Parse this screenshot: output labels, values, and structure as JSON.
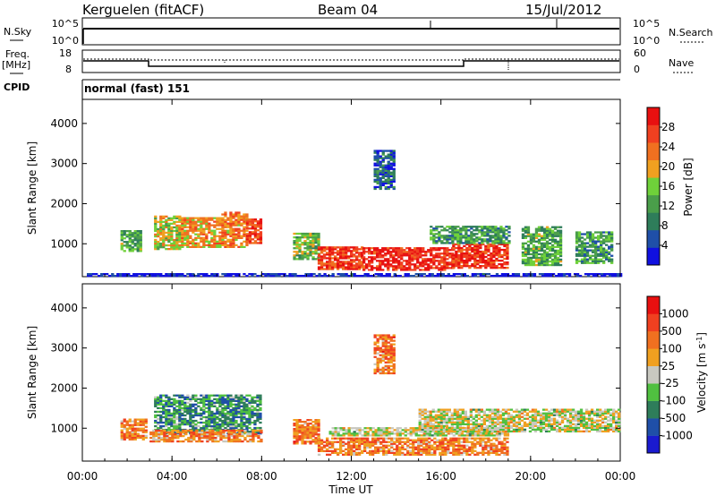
{
  "header": {
    "station": "Kerguelen (fitACF)",
    "beam": "Beam 04",
    "date": "15/Jul/2012"
  },
  "nsky_panel": {
    "left_label_1": "N.Sky",
    "left_ticks": [
      "10^5",
      "10^0"
    ],
    "right_ticks": [
      "10^5",
      "10^0"
    ],
    "right_label": "N.Search"
  },
  "freq_panel": {
    "left_label_1": "Freq.",
    "left_label_2": "[MHz]",
    "left_ticks": [
      "18",
      "8"
    ],
    "right_ticks": [
      "60",
      "0"
    ],
    "right_label": "Nave"
  },
  "cpid": {
    "label": "CPID",
    "program": "normal (fast) 151"
  },
  "x_axis": {
    "ticks": [
      "00:00",
      "04:00",
      "08:00",
      "12:00",
      "16:00",
      "20:00",
      "00:00"
    ],
    "title": "Time UT"
  },
  "colors": {
    "power_scale": [
      "#1010e0",
      "#1f4fa8",
      "#2e7d5a",
      "#4a9e4a",
      "#6fd13a",
      "#f0a020",
      "#f07020",
      "#f04020",
      "#e81010"
    ],
    "velocity_scale": [
      "#1a1ad0",
      "#1f4fa8",
      "#2e7d5a",
      "#50c040",
      "#c8c8c0",
      "#f0a020",
      "#f07020",
      "#f04020",
      "#e81010"
    ]
  },
  "chart_data": [
    {
      "type": "heatmap",
      "title": "",
      "xlabel": "",
      "ylabel": "Slant Range [km]",
      "y_ticks": [
        "1000",
        "2000",
        "3000",
        "4000"
      ],
      "ylim_km": [
        180,
        4600
      ],
      "xlim_hours": [
        0,
        24
      ],
      "colorbar": {
        "title": "Power [dB]",
        "ticks": [
          "4",
          "8",
          "12",
          "16",
          "20",
          "24",
          "28"
        ],
        "range": [
          0,
          32
        ]
      },
      "regions": [
        {
          "t0": 0.2,
          "t1": 24,
          "r0": 180,
          "r1": 250,
          "level": 0.05
        },
        {
          "t0": 1.7,
          "t1": 2.6,
          "r0": 800,
          "r1": 1300,
          "level": 0.4
        },
        {
          "t0": 3.2,
          "t1": 4.4,
          "r0": 850,
          "r1": 1700,
          "level": 0.55
        },
        {
          "t0": 4.4,
          "t1": 6.2,
          "r0": 900,
          "r1": 1650,
          "level": 0.65
        },
        {
          "t0": 6.2,
          "t1": 7.3,
          "r0": 900,
          "r1": 1800,
          "level": 0.7
        },
        {
          "t0": 7.3,
          "t1": 8.0,
          "r0": 1000,
          "r1": 1600,
          "level": 0.85
        },
        {
          "t0": 9.4,
          "t1": 10.5,
          "r0": 600,
          "r1": 1250,
          "level": 0.45
        },
        {
          "t0": 10.5,
          "t1": 12.5,
          "r0": 350,
          "r1": 900,
          "level": 0.85
        },
        {
          "t0": 12.5,
          "t1": 16.5,
          "r0": 330,
          "r1": 900,
          "level": 0.92
        },
        {
          "t0": 16.5,
          "t1": 19.0,
          "r0": 380,
          "r1": 1000,
          "level": 0.88
        },
        {
          "t0": 15.5,
          "t1": 19.0,
          "r0": 1000,
          "r1": 1450,
          "level": 0.35
        },
        {
          "t0": 19.6,
          "t1": 21.4,
          "r0": 450,
          "r1": 1400,
          "level": 0.4
        },
        {
          "t0": 22.0,
          "t1": 23.6,
          "r0": 500,
          "r1": 1300,
          "level": 0.35
        },
        {
          "t0": 13.0,
          "t1": 13.9,
          "r0": 2350,
          "r1": 3300,
          "level": 0.2
        }
      ]
    },
    {
      "type": "heatmap",
      "title": "",
      "xlabel": "Time UT",
      "ylabel": "Slant Range [km]",
      "y_ticks": [
        "1000",
        "2000",
        "3000",
        "4000"
      ],
      "ylim_km": [
        180,
        4600
      ],
      "xlim_hours": [
        0,
        24
      ],
      "colorbar": {
        "title": "Velocity [m s^-1]",
        "ticks": [
          "1000",
          "500",
          "100",
          "25",
          "-25",
          "-100",
          "-500",
          "-1000"
        ],
        "range": [
          -1000,
          1000
        ]
      },
      "regions": [
        {
          "t0": 1.7,
          "t1": 2.8,
          "r0": 700,
          "r1": 1200,
          "level": 0.7
        },
        {
          "t0": 3.2,
          "t1": 8.0,
          "r0": 850,
          "r1": 1800,
          "level": 0.3
        },
        {
          "t0": 3.0,
          "t1": 8.0,
          "r0": 650,
          "r1": 950,
          "level": 0.68
        },
        {
          "t0": 9.4,
          "t1": 10.5,
          "r0": 600,
          "r1": 1200,
          "level": 0.72
        },
        {
          "t0": 10.5,
          "t1": 19.0,
          "r0": 320,
          "r1": 750,
          "level": 0.7
        },
        {
          "t0": 11.0,
          "t1": 19.0,
          "r0": 800,
          "r1": 1000,
          "level": 0.5
        },
        {
          "t0": 15.0,
          "t1": 24.0,
          "r0": 900,
          "r1": 1450,
          "level": 0.5
        },
        {
          "t0": 13.0,
          "t1": 13.9,
          "r0": 2350,
          "r1": 3300,
          "level": 0.72
        }
      ]
    }
  ]
}
